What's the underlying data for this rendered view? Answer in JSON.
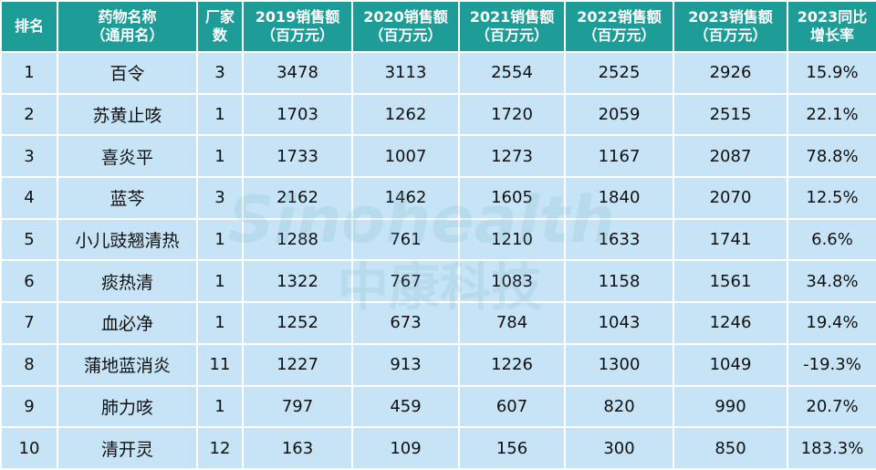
{
  "table": {
    "header": [
      [
        "排名"
      ],
      [
        "药物名称",
        "（通用名）"
      ],
      [
        "厂家",
        "数"
      ],
      [
        "2019销售额",
        "（百万元）"
      ],
      [
        "2020销售额",
        "（百万元）"
      ],
      [
        "2021销售额",
        "（百万元）"
      ],
      [
        "2022销售额",
        "（百万元）"
      ],
      [
        "2023销售额",
        "（百万元）"
      ],
      [
        "2023同比",
        "增长率"
      ]
    ],
    "rows": [
      [
        "1",
        "百令",
        "3",
        "3478",
        "3113",
        "2554",
        "2525",
        "2926",
        "15.9%"
      ],
      [
        "2",
        "苏黄止咳",
        "1",
        "1703",
        "1262",
        "1720",
        "2059",
        "2515",
        "22.1%"
      ],
      [
        "3",
        "喜炎平",
        "1",
        "1733",
        "1007",
        "1273",
        "1167",
        "2087",
        "78.8%"
      ],
      [
        "4",
        "蓝芩",
        "3",
        "2162",
        "1462",
        "1605",
        "1840",
        "2070",
        "12.5%"
      ],
      [
        "5",
        "小儿豉翘清热",
        "1",
        "1288",
        "761",
        "1210",
        "1633",
        "1741",
        "6.6%"
      ],
      [
        "6",
        "痰热清",
        "1",
        "1322",
        "767",
        "1083",
        "1158",
        "1561",
        "34.8%"
      ],
      [
        "7",
        "血必净",
        "1",
        "1252",
        "673",
        "784",
        "1043",
        "1246",
        "19.4%"
      ],
      [
        "8",
        "蒲地蓝消炎",
        "11",
        "1227",
        "913",
        "1226",
        "1300",
        "1049",
        "-19.3%"
      ],
      [
        "9",
        "肺力咳",
        "1",
        "797",
        "459",
        "607",
        "820",
        "990",
        "20.7%"
      ],
      [
        "10",
        "清开灵",
        "12",
        "163",
        "109",
        "156",
        "300",
        "850",
        "183.3%"
      ]
    ]
  },
  "watermark": {
    "en": "Sinohealth",
    "zh": "中康科技"
  }
}
